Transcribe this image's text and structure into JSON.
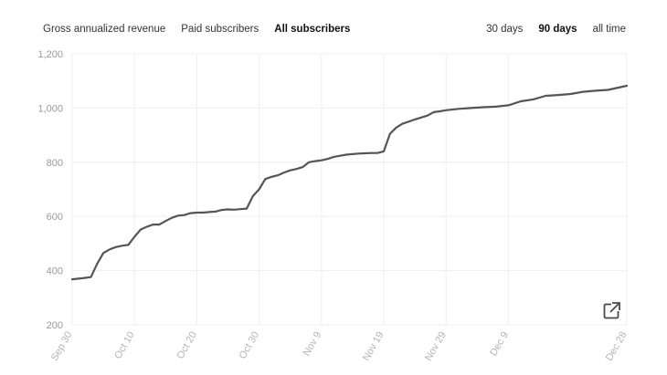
{
  "metric_tabs": [
    {
      "label": "Gross annualized revenue",
      "active": false
    },
    {
      "label": "Paid subscribers",
      "active": false
    },
    {
      "label": "All subscribers",
      "active": true
    }
  ],
  "range_tabs": [
    {
      "label": "30 days",
      "active": false
    },
    {
      "label": "90 days",
      "active": true
    },
    {
      "label": "all time",
      "active": false
    }
  ],
  "expand_icon": "external-expand-icon",
  "chart_data": {
    "type": "line",
    "title": "",
    "xlabel": "",
    "ylabel": "",
    "ylim": [
      200,
      1200
    ],
    "yticks": [
      "200",
      "400",
      "600",
      "800",
      "1,000",
      "1,200"
    ],
    "xticks": [
      "Sep 30",
      "Oct 10",
      "Oct 20",
      "Oct 30",
      "Nov 9",
      "Nov 19",
      "Nov 29",
      "Dec 9",
      "Dec 28"
    ],
    "x": [
      "Sep 30",
      "Oct 2",
      "Oct 3",
      "Oct 4",
      "Oct 5",
      "Oct 6",
      "Oct 7",
      "Oct 8",
      "Oct 9",
      "Oct 10",
      "Oct 11",
      "Oct 12",
      "Oct 13",
      "Oct 14",
      "Oct 15",
      "Oct 16",
      "Oct 17",
      "Oct 18",
      "Oct 19",
      "Oct 20",
      "Oct 21",
      "Oct 22",
      "Oct 23",
      "Oct 24",
      "Oct 25",
      "Oct 26",
      "Oct 27",
      "Oct 28",
      "Oct 29",
      "Oct 30",
      "Oct 31",
      "Nov 1",
      "Nov 2",
      "Nov 3",
      "Nov 4",
      "Nov 5",
      "Nov 6",
      "Nov 7",
      "Nov 8",
      "Nov 9",
      "Nov 10",
      "Nov 11",
      "Nov 12",
      "Nov 13",
      "Nov 14",
      "Nov 15",
      "Nov 16",
      "Nov 17",
      "Nov 18",
      "Nov 19",
      "Nov 20",
      "Nov 21",
      "Nov 22",
      "Nov 23",
      "Nov 24",
      "Nov 25",
      "Nov 26",
      "Nov 27",
      "Nov 28",
      "Nov 29",
      "Dec 1",
      "Dec 3",
      "Dec 5",
      "Dec 7",
      "Dec 9",
      "Dec 11",
      "Dec 13",
      "Dec 15",
      "Dec 17",
      "Dec 19",
      "Dec 21",
      "Dec 23",
      "Dec 25",
      "Dec 28"
    ],
    "series": [
      {
        "values": [
          368,
          373,
          376,
          425,
          465,
          478,
          487,
          492,
          495,
          525,
          552,
          562,
          570,
          570,
          583,
          595,
          603,
          605,
          612,
          614,
          614,
          616,
          618,
          624,
          626,
          625,
          627,
          629,
          675,
          700,
          738,
          746,
          752,
          762,
          770,
          775,
          782,
          800,
          804,
          807,
          812,
          820,
          824,
          828,
          830,
          832,
          833,
          834,
          834,
          840,
          905,
          928,
          942,
          950,
          958,
          965,
          972,
          985,
          988,
          992,
          997,
          1000,
          1003,
          1005,
          1010,
          1025,
          1032,
          1045,
          1048,
          1052,
          1060,
          1064,
          1067,
          1082
        ]
      }
    ]
  }
}
